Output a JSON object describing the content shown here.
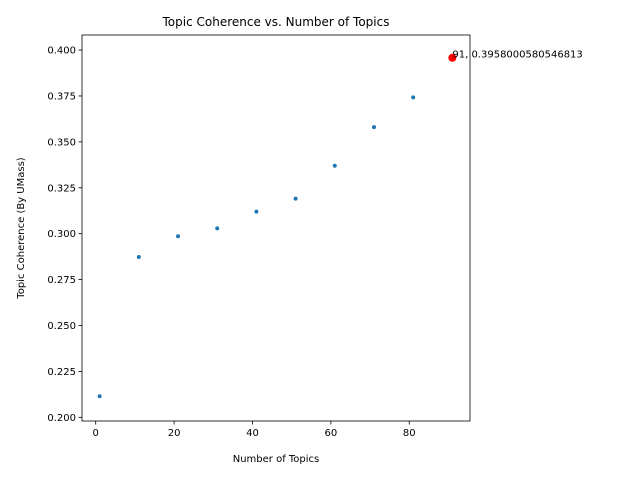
{
  "chart_data": {
    "type": "scatter",
    "title": "Topic Coherence vs. Number of Topics",
    "xlabel": "Number of Topics",
    "ylabel": "Topic Coherence (By UMass)",
    "xlim": [
      -3.5,
      95.5
    ],
    "ylim": [
      0.198,
      0.4082
    ],
    "xticks": [
      0,
      20,
      40,
      60,
      80
    ],
    "xtick_labels": [
      "0",
      "20",
      "40",
      "60",
      "80"
    ],
    "yticks": [
      0.2,
      0.225,
      0.25,
      0.275,
      0.3,
      0.325,
      0.35,
      0.375,
      0.4
    ],
    "ytick_labels": [
      "0.200",
      "0.225",
      "0.250",
      "0.275",
      "0.300",
      "0.325",
      "0.350",
      "0.375",
      "0.400"
    ],
    "grid": false,
    "series": [
      {
        "name": "coherence",
        "color": "#1f77b4",
        "x": [
          1,
          11,
          21,
          31,
          41,
          51,
          61,
          71,
          81
        ],
        "y": [
          0.2115,
          0.2873,
          0.2986,
          0.3029,
          0.312,
          0.3191,
          0.337,
          0.358,
          0.3742
        ]
      }
    ],
    "highlight": {
      "x": 91,
      "y": 0.3958000580546813,
      "color": "#ff0000",
      "label": "91, 0.3958000580546813"
    }
  }
}
